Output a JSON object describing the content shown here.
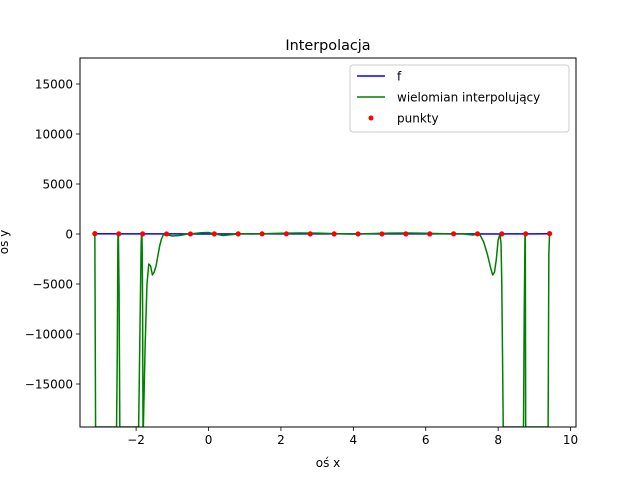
{
  "chart_data": {
    "type": "line",
    "title": "Interpolacja",
    "xlabel": "oś x",
    "ylabel": "oś y",
    "xlim": [
      -3.55,
      10.15
    ],
    "ylim": [
      -19300,
      17600
    ],
    "xticks": [
      -2,
      0,
      2,
      4,
      6,
      8,
      10
    ],
    "xtick_labels": [
      "−2",
      "0",
      "2",
      "4",
      "6",
      "8",
      "10"
    ],
    "yticks": [
      -15000,
      -10000,
      -5000,
      0,
      5000,
      10000,
      15000
    ],
    "ytick_labels": [
      "−15000",
      "−10000",
      "−5000",
      "0",
      "5000",
      "10000",
      "15000"
    ],
    "grid": false,
    "legend": {
      "position": "top-right",
      "entries": [
        "f",
        "wielomian interpolujący",
        "punkty"
      ]
    },
    "series": [
      {
        "name": "f",
        "kind": "line",
        "color": "#0000ff",
        "x": [
          -3.14,
          -2.0,
          -1.0,
          0.0,
          1.0,
          2.0,
          3.0,
          4.0,
          5.0,
          6.0,
          7.0,
          8.0,
          9.0,
          9.42
        ],
        "y": [
          30,
          15,
          8,
          5,
          8,
          12,
          10,
          8,
          10,
          12,
          8,
          5,
          15,
          30
        ]
      },
      {
        "name": "wielomian interpolujący",
        "kind": "line",
        "color": "#008000",
        "x": [
          -3.14,
          -3.12,
          -3.08,
          -3.0,
          -2.9,
          -2.8,
          -2.7,
          -2.6,
          -2.54,
          -2.52,
          -2.51,
          -2.505,
          -2.5,
          -2.49,
          -2.47,
          -2.45,
          -2.44,
          -2.4,
          -2.3,
          -2.2,
          -2.1,
          -2.0,
          -1.93,
          -1.88,
          -1.86,
          -1.85,
          -1.84,
          -1.83,
          -1.82,
          -1.81,
          -1.8,
          -1.78,
          -1.75,
          -1.7,
          -1.65,
          -1.6,
          -1.55,
          -1.5,
          -1.45,
          -1.4,
          -1.35,
          -1.3,
          -1.25,
          -1.2,
          -1.18,
          -1.1,
          -1.0,
          -0.8,
          -0.6,
          -0.51,
          -0.4,
          -0.2,
          0.0,
          0.15,
          0.4,
          0.6,
          0.8,
          1.0,
          1.2,
          1.5,
          2.0,
          2.5,
          3.0,
          3.5,
          4.0,
          4.5,
          5.0,
          5.5,
          6.0,
          6.5,
          6.8,
          7.0,
          7.3,
          7.45,
          7.5,
          7.6,
          7.7,
          7.8,
          7.85,
          7.9,
          7.95,
          8.0,
          8.05,
          8.08,
          8.1,
          8.12,
          8.14,
          8.16,
          8.2,
          8.25,
          8.3,
          8.4,
          8.5,
          8.6,
          8.7,
          8.72,
          8.74,
          8.745,
          8.75,
          8.76,
          8.8,
          8.9,
          9.0,
          9.1,
          9.2,
          9.3,
          9.36,
          9.38,
          9.4,
          9.42
        ],
        "y": [
          0,
          -19300,
          -19300,
          -19300,
          -19300,
          -19300,
          -19300,
          -19300,
          -19300,
          -12000,
          -5000,
          -1500,
          30,
          0,
          -6000,
          -19300,
          -19300,
          -19300,
          -19300,
          -19300,
          -19300,
          -19300,
          -19300,
          -6000,
          -800,
          20,
          0,
          -2000,
          -8000,
          -19300,
          -19300,
          -16000,
          -11000,
          -5000,
          -3000,
          -3200,
          -4100,
          -3800,
          -3200,
          -2200,
          -1200,
          -500,
          -100,
          0,
          0,
          -120,
          -200,
          -150,
          -10,
          0,
          50,
          120,
          150,
          20,
          -150,
          -80,
          0,
          20,
          0,
          30,
          80,
          100,
          90,
          40,
          -10,
          40,
          90,
          100,
          80,
          20,
          0,
          30,
          -100,
          0,
          -100,
          -800,
          -2000,
          -3500,
          -4100,
          -3800,
          -2500,
          -600,
          0,
          -1000,
          -5000,
          -12000,
          -19300,
          -19300,
          -19300,
          -19300,
          -19300,
          -19300,
          -19300,
          -19300,
          -19300,
          -8000,
          -500,
          20,
          0,
          -19300,
          -19300,
          -19300,
          -19300,
          -19300,
          -19300,
          -19300,
          -19300,
          -19300,
          -2000,
          30
        ]
      },
      {
        "name": "punkty",
        "kind": "scatter",
        "color": "#ff0000",
        "x": [
          -3.14,
          -2.48,
          -1.82,
          -1.16,
          -0.5,
          0.16,
          0.82,
          1.48,
          2.15,
          2.81,
          3.47,
          4.13,
          4.79,
          5.45,
          6.11,
          6.77,
          7.43,
          8.1,
          8.76,
          9.42
        ],
        "y": [
          40,
          20,
          10,
          5,
          5,
          10,
          15,
          20,
          20,
          15,
          10,
          5,
          5,
          10,
          15,
          20,
          20,
          10,
          20,
          40
        ]
      }
    ]
  }
}
